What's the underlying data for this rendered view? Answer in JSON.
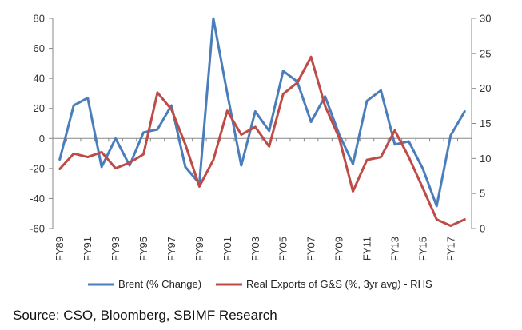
{
  "chart_data": {
    "type": "line",
    "x": [
      "FY89",
      "FY90",
      "FY91",
      "FY92",
      "FY93",
      "FY94",
      "FY95",
      "FY96",
      "FY97",
      "FY98",
      "FY99",
      "FY00",
      "FY01",
      "FY02",
      "FY03",
      "FY04",
      "FY05",
      "FY06",
      "FY07",
      "FY08",
      "FY09",
      "FY10",
      "FY11",
      "FY12",
      "FY13",
      "FY14",
      "FY15",
      "FY16",
      "FY17",
      "FY18"
    ],
    "x_tick_labels": [
      "FY89",
      "FY91",
      "FY93",
      "FY95",
      "FY97",
      "FY99",
      "FY01",
      "FY03",
      "FY05",
      "FY07",
      "FY09",
      "FY11",
      "FY13",
      "FY15",
      "FY17"
    ],
    "series": [
      {
        "name": "Brent (% Change)",
        "axis": "left",
        "color": "#4A7EBB",
        "values": [
          -14,
          22,
          27,
          -19,
          0,
          -18,
          4,
          6,
          22,
          -19,
          -30,
          80,
          30,
          -18,
          18,
          5,
          45,
          38,
          11,
          28,
          3,
          -17,
          25,
          32,
          -4,
          -2,
          -20,
          -45,
          2,
          18
        ]
      },
      {
        "name": "Real Exports of G&S (%, 3yr avg) - RHS",
        "axis": "right",
        "color": "#BE4B48",
        "values": [
          8.5,
          10.7,
          10.2,
          10.9,
          8.6,
          9.4,
          10.6,
          19.4,
          17.0,
          12.0,
          6.0,
          9.8,
          16.8,
          13.4,
          14.5,
          11.7,
          19.2,
          20.8,
          24.5,
          17.5,
          13.0,
          5.3,
          9.8,
          10.2,
          14.0,
          10.2,
          5.8,
          1.3,
          0.4,
          1.3
        ]
      }
    ],
    "y_left": {
      "min": -60,
      "max": 80,
      "ticks": [
        "80",
        "60",
        "40",
        "20",
        "0",
        "-20",
        "-40",
        "-60"
      ]
    },
    "y_right": {
      "min": 0,
      "max": 30,
      "ticks": [
        "30",
        "25",
        "20",
        "15",
        "10",
        "5",
        "0"
      ]
    },
    "grid": false,
    "legend_position": "bottom",
    "title": "",
    "xlabel": "",
    "ylabel": ""
  },
  "source_text": "Source: CSO, Bloomberg, SBIMF Research"
}
